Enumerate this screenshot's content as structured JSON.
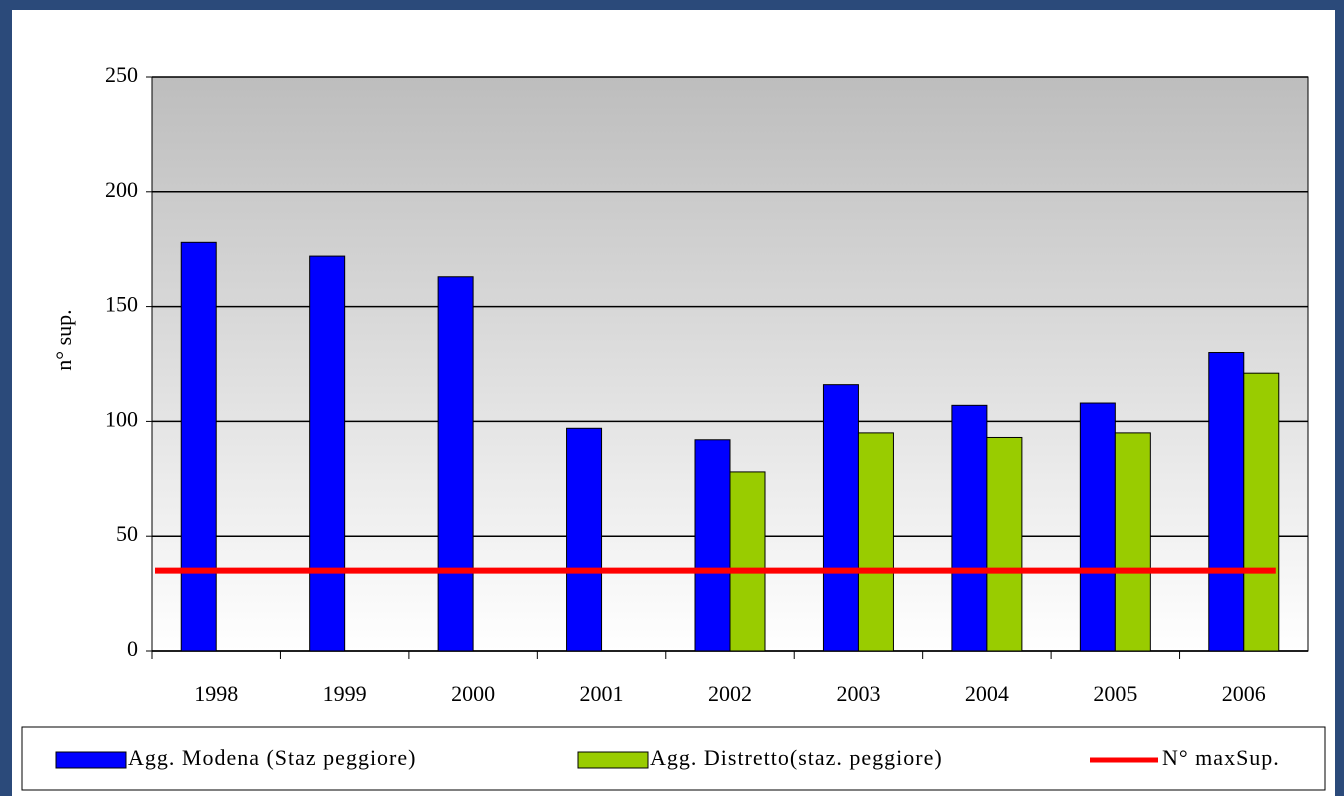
{
  "chart_data": {
    "type": "bar",
    "y_label": "n° sup.",
    "categories": [
      "1998",
      "1999",
      "2000",
      "2001",
      "2002",
      "2003",
      "2004",
      "2005",
      "2006"
    ],
    "series": [
      {
        "name": "Agg. Modena (Staz peggiore)",
        "color": "#0000ff",
        "values": [
          178,
          172,
          163,
          97,
          92,
          116,
          107,
          108,
          130
        ]
      },
      {
        "name": "Agg. Distretto(staz. peggiore)",
        "color": "#99cc00",
        "values": [
          null,
          null,
          null,
          null,
          78,
          95,
          93,
          95,
          121
        ]
      },
      {
        "name": "N° maxSup.",
        "color": "#ff0000",
        "type": "line",
        "values": [
          35,
          35,
          35,
          35,
          35,
          35,
          35,
          35,
          35
        ]
      }
    ],
    "ylim": [
      0,
      250
    ],
    "yticks": [
      0,
      50,
      100,
      150,
      200,
      250
    ],
    "grid": true,
    "legend": "bottom"
  }
}
